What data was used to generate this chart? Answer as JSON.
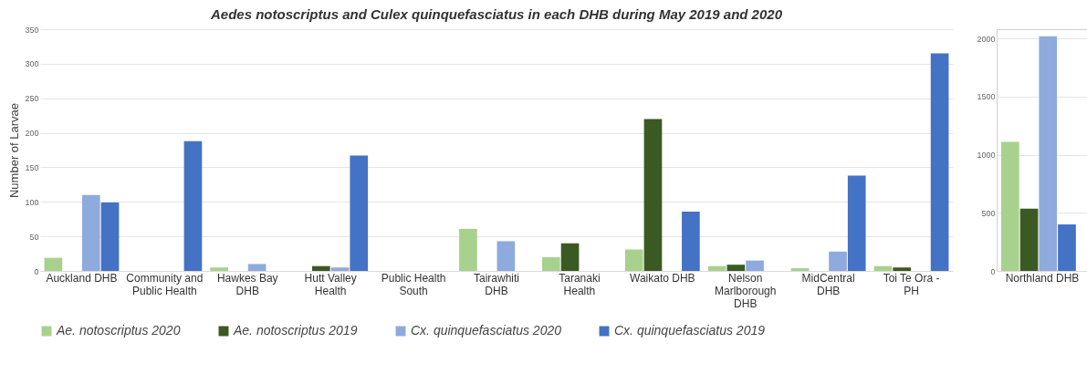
{
  "chart_data": [
    {
      "type": "bar",
      "title": "Aedes notoscriptus and Culex quinquefasciatus in each DHB during May 2019 and 2020",
      "ylabel": "Number of Larvae",
      "categories": [
        "Auckland DHB",
        "Community and Public Health",
        "Hawkes Bay DHB",
        "Hutt Valley Health",
        "Public Health South",
        "Tairawhiti DHB",
        "Taranaki Health",
        "Waikato DHB",
        "Nelson Marlborough DHB",
        "MidCentral DHB",
        "Toi Te Ora - PH"
      ],
      "series": [
        {
          "name": "Ae. notoscriptus 2020",
          "color": "#a9d18e",
          "values": [
            19,
            null,
            5,
            null,
            null,
            61,
            20,
            31,
            7,
            4,
            7
          ]
        },
        {
          "name": "Ae. notoscriptus 2019",
          "color": "#3b5a23",
          "values": [
            null,
            null,
            null,
            7,
            null,
            null,
            40,
            220,
            9,
            null,
            5
          ]
        },
        {
          "name": "Cx. quinquefasciatus 2020",
          "color": "#8faadc",
          "values": [
            110,
            null,
            10,
            5,
            null,
            43,
            null,
            null,
            15,
            28,
            null
          ]
        },
        {
          "name": "Cx. quinquefasciatus 2019",
          "color": "#4472c4",
          "values": [
            99,
            188,
            null,
            167,
            null,
            null,
            null,
            86,
            null,
            138,
            315
          ]
        }
      ],
      "ylim": [
        0,
        350
      ],
      "yticks": [
        0,
        50,
        100,
        150,
        200,
        250,
        300,
        350
      ],
      "grid": "y",
      "legend": "bottom"
    },
    {
      "type": "bar",
      "categories": [
        "Northland DHB"
      ],
      "series": [
        {
          "color": "#a9d18e",
          "values": [
            1110
          ]
        },
        {
          "color": "#3b5a23",
          "values": [
            535
          ]
        },
        {
          "color": "#8faadc",
          "values": [
            2020
          ]
        },
        {
          "color": "#4472c4",
          "values": [
            400
          ]
        }
      ],
      "ylim": [
        0,
        2080
      ],
      "yticks": [
        0,
        500,
        1000,
        1500,
        2000
      ],
      "grid": "y"
    }
  ]
}
